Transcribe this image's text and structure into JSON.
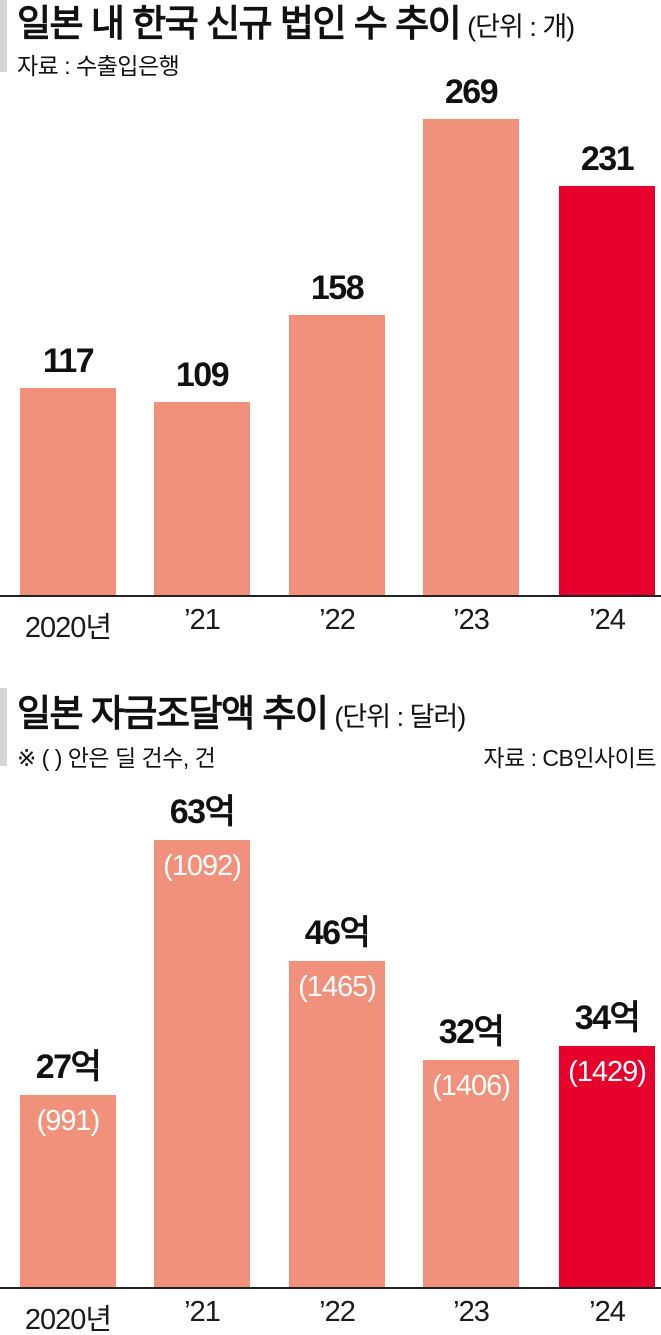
{
  "colors": {
    "bar_salmon": "#f2917b",
    "bar_highlight_red": "#e6002b",
    "accent_rule_gray": "#d5d5d7",
    "axis_line": "#222222",
    "text_black": "#111111",
    "inner_label_white": "#ffffff",
    "background": "#ffffff"
  },
  "section1": {
    "title": "일본 내 한국 신규 법인 수 추이",
    "unit": "(단위 : 개)",
    "source": "자료 : 수출입은행"
  },
  "section2": {
    "title": "일본 자금조달액 추이",
    "unit": "(단위 : 달러)",
    "note": "※ (  ) 안은 딜 건수, 건",
    "source": "자료 : CB인사이트"
  },
  "chart_data": [
    {
      "type": "bar",
      "title": "일본 내 한국 신규 법인 수 추이",
      "unit": "개",
      "source": "수출입은행",
      "categories": [
        "2020년",
        "’21",
        "’22",
        "’23",
        "’24"
      ],
      "values": [
        117,
        109,
        158,
        269,
        231
      ],
      "value_labels": [
        "117",
        "109",
        "158",
        "269",
        "231"
      ],
      "highlight_index": 4,
      "ylim": [
        0,
        280
      ],
      "grid": false,
      "legend": false
    },
    {
      "type": "bar",
      "title": "일본 자금조달액 추이",
      "unit": "달러",
      "source": "CB인사이트",
      "note": "※ ( ) 안은 딜 건수, 건",
      "categories": [
        "2020년",
        "’21",
        "’22",
        "’23",
        "’24"
      ],
      "values": [
        27,
        63,
        46,
        32,
        34
      ],
      "value_labels": [
        "27억",
        "63억",
        "46억",
        "32억",
        "34억"
      ],
      "deal_counts": [
        991,
        1092,
        1465,
        1406,
        1429
      ],
      "deal_count_labels": [
        "(991)",
        "(1092)",
        "(1465)",
        "(1406)",
        "(1429)"
      ],
      "highlight_index": 4,
      "ylim": [
        0,
        70
      ],
      "grid": false,
      "legend": false
    }
  ]
}
